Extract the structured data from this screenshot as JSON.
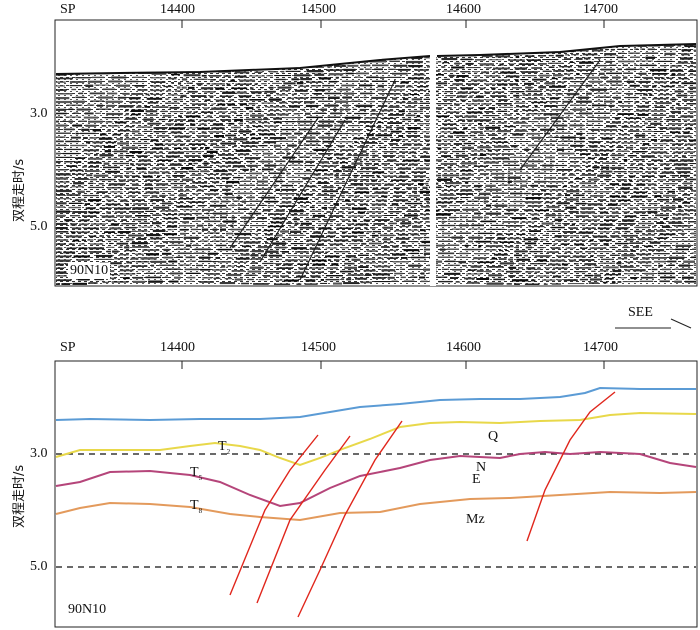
{
  "top_panel": {
    "sp_label": "SP",
    "sp_ticks": [
      "14400",
      "14500",
      "14600",
      "14700"
    ],
    "y_axis_label": "双程走时/s",
    "y_ticks": [
      "3.0",
      "5.0"
    ],
    "line_name": "90N10"
  },
  "direction_label": "SEE",
  "bottom_panel": {
    "sp_label": "SP",
    "sp_ticks": [
      "14400",
      "14500",
      "14600",
      "14700"
    ],
    "y_axis_label": "双程走时/s",
    "y_ticks": [
      "3.0",
      "5.0"
    ],
    "line_name": "90N10",
    "horizons": [
      {
        "label": "T",
        "sub": "2",
        "color": "#e8d84a"
      },
      {
        "label": "T",
        "sub": "5",
        "color": "#b5457a"
      },
      {
        "label": "T",
        "sub": "8",
        "color": "#e39a5c"
      }
    ],
    "units": [
      "Q",
      "N",
      "E",
      "Mz"
    ],
    "colors": {
      "seafloor": "#5b9bd5",
      "fault": "#e0261c"
    }
  }
}
